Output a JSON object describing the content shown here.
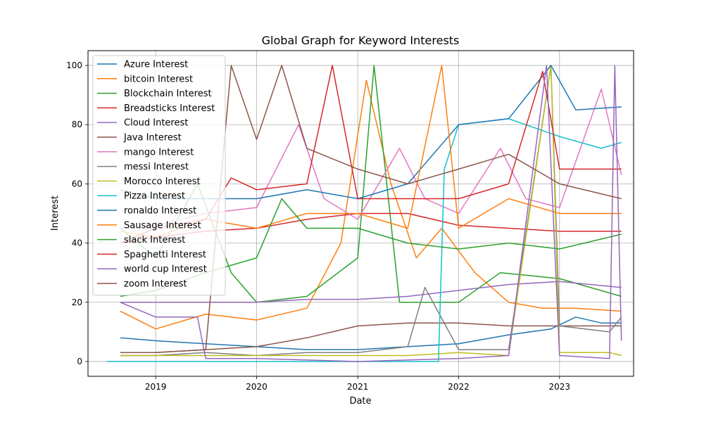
{
  "chart_data": {
    "type": "line",
    "title": "Global Graph for Keyword Interests",
    "xlabel": "Date",
    "ylabel": "Interest",
    "xlim": [
      "2018-05-01",
      "2023-09-26"
    ],
    "ylim": [
      -5,
      105
    ],
    "x_ticks": [
      "2019",
      "2020",
      "2021",
      "2022",
      "2023"
    ],
    "y_ticks": [
      "0",
      "20",
      "40",
      "60",
      "80",
      "100"
    ],
    "grid": true,
    "legend_position": "top-left",
    "series": [
      {
        "name": "Azure Interest",
        "color": "#1f77b4",
        "points": [
          [
            "2018-08-26",
            8
          ],
          [
            "2019-01-01",
            7
          ],
          [
            "2019-07-01",
            6
          ],
          [
            "2020-01-01",
            5
          ],
          [
            "2020-07-01",
            4
          ],
          [
            "2021-01-01",
            4
          ],
          [
            "2021-07-01",
            5
          ],
          [
            "2022-01-01",
            6
          ],
          [
            "2022-07-01",
            9
          ],
          [
            "2022-12-01",
            11
          ],
          [
            "2023-03-01",
            15
          ],
          [
            "2023-06-01",
            13
          ],
          [
            "2023-08-13",
            13
          ]
        ]
      },
      {
        "name": "bitcoin Interest",
        "color": "#ff7f0e",
        "points": [
          [
            "2018-08-26",
            17
          ],
          [
            "2019-01-01",
            11
          ],
          [
            "2019-07-01",
            16
          ],
          [
            "2020-01-01",
            14
          ],
          [
            "2020-07-01",
            18
          ],
          [
            "2020-11-01",
            40
          ],
          [
            "2021-02-01",
            95
          ],
          [
            "2021-05-01",
            60
          ],
          [
            "2021-08-01",
            35
          ],
          [
            "2021-11-01",
            45
          ],
          [
            "2022-03-01",
            30
          ],
          [
            "2022-07-01",
            20
          ],
          [
            "2022-11-01",
            18
          ],
          [
            "2023-03-01",
            18
          ],
          [
            "2023-08-13",
            17
          ]
        ]
      },
      {
        "name": "Blockchain Interest",
        "color": "#2ca02c",
        "points": [
          [
            "2018-08-26",
            45
          ],
          [
            "2019-01-01",
            35
          ],
          [
            "2019-06-01",
            60
          ],
          [
            "2019-10-01",
            30
          ],
          [
            "2020-01-01",
            20
          ],
          [
            "2020-07-01",
            22
          ],
          [
            "2021-01-01",
            35
          ],
          [
            "2021-03-01",
            100
          ],
          [
            "2021-06-01",
            20
          ],
          [
            "2022-01-01",
            20
          ],
          [
            "2022-06-01",
            30
          ],
          [
            "2023-01-01",
            28
          ],
          [
            "2023-08-13",
            22
          ]
        ]
      },
      {
        "name": "Breadsticks Interest",
        "color": "#d62728",
        "points": [
          [
            "2018-08-26",
            40
          ],
          [
            "2019-01-01",
            42
          ],
          [
            "2019-07-01",
            44
          ],
          [
            "2020-01-01",
            45
          ],
          [
            "2020-07-01",
            48
          ],
          [
            "2021-01-01",
            50
          ],
          [
            "2021-07-01",
            50
          ],
          [
            "2022-01-01",
            46
          ],
          [
            "2022-07-01",
            45
          ],
          [
            "2023-01-01",
            44
          ],
          [
            "2023-08-13",
            44
          ]
        ]
      },
      {
        "name": "Cloud Interest",
        "color": "#9467bd",
        "points": [
          [
            "2018-08-26",
            20
          ],
          [
            "2019-01-01",
            20
          ],
          [
            "2019-07-01",
            20
          ],
          [
            "2020-01-01",
            20
          ],
          [
            "2020-07-01",
            21
          ],
          [
            "2021-01-01",
            21
          ],
          [
            "2021-07-01",
            22
          ],
          [
            "2022-01-01",
            24
          ],
          [
            "2022-07-01",
            26
          ],
          [
            "2023-01-01",
            27
          ],
          [
            "2023-08-13",
            25
          ]
        ]
      },
      {
        "name": "Java Interest",
        "color": "#8c564b",
        "points": [
          [
            "2018-08-26",
            3
          ],
          [
            "2019-01-01",
            3
          ],
          [
            "2019-07-01",
            4
          ],
          [
            "2020-01-01",
            5
          ],
          [
            "2020-07-01",
            8
          ],
          [
            "2021-01-01",
            12
          ],
          [
            "2021-07-01",
            13
          ],
          [
            "2022-01-01",
            13
          ],
          [
            "2022-07-01",
            12
          ],
          [
            "2023-01-01",
            12
          ],
          [
            "2023-08-13",
            12
          ]
        ]
      },
      {
        "name": "mango Interest",
        "color": "#e377c2",
        "points": [
          [
            "2018-08-26",
            45
          ],
          [
            "2019-01-01",
            46
          ],
          [
            "2019-07-01",
            50
          ],
          [
            "2020-01-01",
            52
          ],
          [
            "2020-06-01",
            80
          ],
          [
            "2020-09-01",
            55
          ],
          [
            "2021-01-01",
            48
          ],
          [
            "2021-06-01",
            72
          ],
          [
            "2021-09-01",
            55
          ],
          [
            "2022-01-01",
            50
          ],
          [
            "2022-06-01",
            72
          ],
          [
            "2022-09-01",
            55
          ],
          [
            "2023-01-01",
            52
          ],
          [
            "2023-06-01",
            92
          ],
          [
            "2023-08-13",
            63
          ]
        ]
      },
      {
        "name": "messi Interest",
        "color": "#7f7f7f",
        "points": [
          [
            "2018-08-26",
            2
          ],
          [
            "2019-01-01",
            2
          ],
          [
            "2019-07-01",
            3
          ],
          [
            "2020-01-01",
            2
          ],
          [
            "2020-07-01",
            3
          ],
          [
            "2021-01-01",
            3
          ],
          [
            "2021-07-01",
            5
          ],
          [
            "2021-09-01",
            25
          ],
          [
            "2022-01-01",
            4
          ],
          [
            "2022-07-01",
            4
          ],
          [
            "2022-12-01",
            100
          ],
          [
            "2023-01-01",
            12
          ],
          [
            "2023-07-01",
            10
          ],
          [
            "2023-08-13",
            15
          ]
        ]
      },
      {
        "name": "Morocco Interest",
        "color": "#bcbd22",
        "points": [
          [
            "2018-08-26",
            2
          ],
          [
            "2019-01-01",
            2
          ],
          [
            "2019-07-01",
            2
          ],
          [
            "2020-01-01",
            2
          ],
          [
            "2020-07-01",
            2
          ],
          [
            "2021-01-01",
            2
          ],
          [
            "2021-07-01",
            2
          ],
          [
            "2022-01-01",
            3
          ],
          [
            "2022-07-01",
            2
          ],
          [
            "2022-12-01",
            100
          ],
          [
            "2023-01-01",
            3
          ],
          [
            "2023-07-01",
            3
          ],
          [
            "2023-08-13",
            2
          ]
        ]
      },
      {
        "name": "Pizza Interest",
        "color": "#17becf",
        "points": [
          [
            "2018-07-08",
            0
          ],
          [
            "2019-01-01",
            0
          ],
          [
            "2020-01-01",
            0
          ],
          [
            "2021-01-01",
            0
          ],
          [
            "2021-10-20",
            0
          ],
          [
            "2021-11-10",
            65
          ],
          [
            "2022-01-01",
            80
          ],
          [
            "2022-07-01",
            82
          ],
          [
            "2023-01-01",
            76
          ],
          [
            "2023-06-01",
            72
          ],
          [
            "2023-08-13",
            74
          ]
        ]
      },
      {
        "name": "ronaldo Interest",
        "color": "#1f77b4",
        "points": [
          [
            "2018-08-26",
            58
          ],
          [
            "2019-01-01",
            55
          ],
          [
            "2019-07-01",
            55
          ],
          [
            "2020-01-01",
            55
          ],
          [
            "2020-07-01",
            58
          ],
          [
            "2021-01-01",
            55
          ],
          [
            "2021-07-01",
            60
          ],
          [
            "2022-01-01",
            80
          ],
          [
            "2022-07-01",
            82
          ],
          [
            "2022-12-01",
            100
          ],
          [
            "2023-03-01",
            85
          ],
          [
            "2023-08-13",
            86
          ]
        ]
      },
      {
        "name": "Sausage Interest",
        "color": "#ff7f0e",
        "points": [
          [
            "2018-08-26",
            44
          ],
          [
            "2019-01-01",
            42
          ],
          [
            "2019-07-01",
            48
          ],
          [
            "2020-01-01",
            45
          ],
          [
            "2020-07-01",
            50
          ],
          [
            "2021-01-01",
            50
          ],
          [
            "2021-07-01",
            45
          ],
          [
            "2021-11-01",
            100
          ],
          [
            "2022-01-01",
            45
          ],
          [
            "2022-07-01",
            55
          ],
          [
            "2023-01-01",
            50
          ],
          [
            "2023-08-13",
            50
          ]
        ]
      },
      {
        "name": "slack Interest",
        "color": "#2ca02c",
        "points": [
          [
            "2018-08-26",
            22
          ],
          [
            "2019-01-01",
            24
          ],
          [
            "2019-07-01",
            30
          ],
          [
            "2020-01-01",
            35
          ],
          [
            "2020-04-01",
            55
          ],
          [
            "2020-07-01",
            45
          ],
          [
            "2021-01-01",
            45
          ],
          [
            "2021-07-01",
            40
          ],
          [
            "2022-01-01",
            38
          ],
          [
            "2022-07-01",
            40
          ],
          [
            "2023-01-01",
            38
          ],
          [
            "2023-08-13",
            43
          ]
        ]
      },
      {
        "name": "Spaghetti Interest",
        "color": "#d62728",
        "points": [
          [
            "2018-08-26",
            40
          ],
          [
            "2019-01-01",
            45
          ],
          [
            "2019-07-01",
            48
          ],
          [
            "2019-10-01",
            62
          ],
          [
            "2020-01-01",
            58
          ],
          [
            "2020-07-01",
            60
          ],
          [
            "2020-10-01",
            100
          ],
          [
            "2021-01-01",
            55
          ],
          [
            "2021-07-01",
            55
          ],
          [
            "2022-01-01",
            55
          ],
          [
            "2022-07-01",
            60
          ],
          [
            "2022-11-01",
            98
          ],
          [
            "2023-01-01",
            65
          ],
          [
            "2023-08-13",
            65
          ]
        ]
      },
      {
        "name": "world cup Interest",
        "color": "#9467bd",
        "points": [
          [
            "2018-08-26",
            20
          ],
          [
            "2019-01-01",
            15
          ],
          [
            "2019-06-01",
            15
          ],
          [
            "2019-07-01",
            1
          ],
          [
            "2020-01-01",
            1
          ],
          [
            "2021-01-01",
            0
          ],
          [
            "2022-01-01",
            1
          ],
          [
            "2022-07-01",
            2
          ],
          [
            "2022-11-15",
            100
          ],
          [
            "2023-01-01",
            2
          ],
          [
            "2023-07-01",
            1
          ],
          [
            "2023-07-20",
            100
          ],
          [
            "2023-08-13",
            7
          ]
        ]
      },
      {
        "name": "zoom Interest",
        "color": "#8c564b",
        "points": [
          [
            "2018-08-26",
            3
          ],
          [
            "2019-01-01",
            3
          ],
          [
            "2019-07-01",
            4
          ],
          [
            "2019-10-01",
            100
          ],
          [
            "2020-01-01",
            75
          ],
          [
            "2020-04-01",
            100
          ],
          [
            "2020-07-01",
            72
          ],
          [
            "2021-01-01",
            65
          ],
          [
            "2021-07-01",
            60
          ],
          [
            "2022-01-01",
            65
          ],
          [
            "2022-07-01",
            70
          ],
          [
            "2023-01-01",
            60
          ],
          [
            "2023-08-13",
            55
          ]
        ]
      }
    ]
  }
}
